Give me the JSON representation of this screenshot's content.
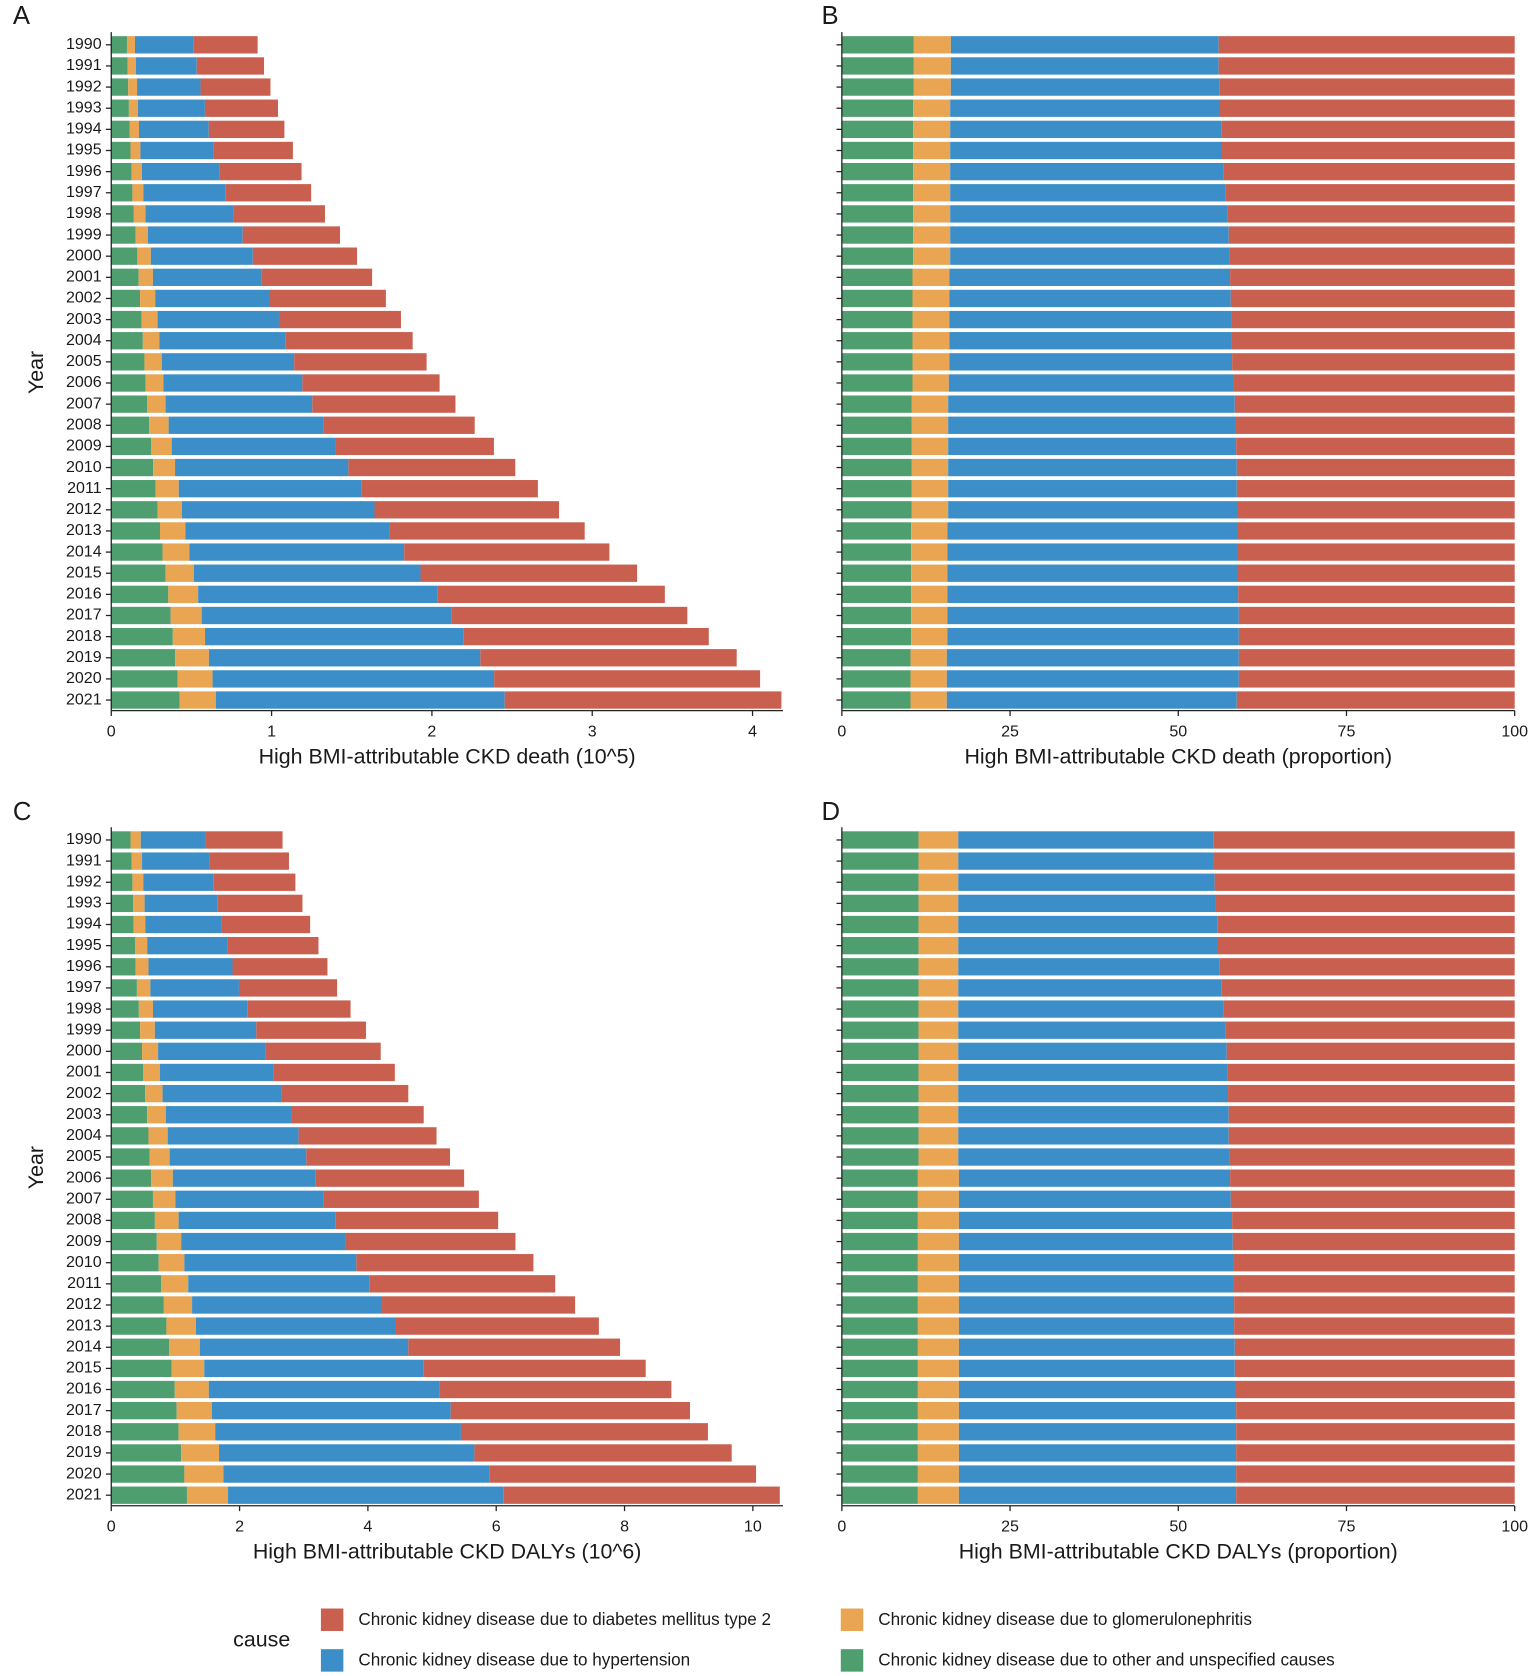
{
  "chart_data": [
    {
      "type": "bar",
      "orientation": "horizontal",
      "stacked": true,
      "panel_label": "A",
      "xlabel": "High BMI-attributable CKD death (10^5)",
      "ylabel": "Year",
      "legend_title": "cause",
      "categories": [
        1990,
        1991,
        1992,
        1993,
        1994,
        1995,
        1996,
        1997,
        1998,
        1999,
        2000,
        2001,
        2002,
        2003,
        2004,
        2005,
        2006,
        2007,
        2008,
        2009,
        2010,
        2011,
        2012,
        2013,
        2014,
        2015,
        2016,
        2017,
        2018,
        2019,
        2020,
        2021
      ],
      "series": [
        {
          "name": "Chronic kidney disease due to diabetes mellitus type 2",
          "color": "#c9604f",
          "values": [
            0.402,
            0.42,
            0.436,
            0.456,
            0.472,
            0.493,
            0.514,
            0.536,
            0.57,
            0.607,
            0.65,
            0.689,
            0.723,
            0.761,
            0.792,
            0.826,
            0.856,
            0.893,
            0.941,
            0.988,
            1.041,
            1.099,
            1.151,
            1.217,
            1.28,
            1.351,
            1.419,
            1.473,
            1.528,
            1.599,
            1.659,
            1.726
          ]
        },
        {
          "name": "Chronic kidney disease due to hypertension",
          "color": "#3b8ec8",
          "values": [
            0.363,
            0.379,
            0.396,
            0.417,
            0.435,
            0.458,
            0.482,
            0.51,
            0.549,
            0.591,
            0.636,
            0.678,
            0.716,
            0.757,
            0.788,
            0.826,
            0.866,
            0.915,
            0.968,
            1.022,
            1.081,
            1.141,
            1.201,
            1.273,
            1.339,
            1.414,
            1.492,
            1.556,
            1.614,
            1.693,
            1.756,
            1.802
          ]
        },
        {
          "name": "Chronic kidney disease due to glomerulonephritis",
          "color": "#e9a552",
          "values": [
            0.05,
            0.052,
            0.055,
            0.057,
            0.059,
            0.062,
            0.065,
            0.069,
            0.073,
            0.078,
            0.084,
            0.089,
            0.094,
            0.099,
            0.103,
            0.108,
            0.111,
            0.116,
            0.122,
            0.129,
            0.136,
            0.144,
            0.151,
            0.159,
            0.168,
            0.177,
            0.186,
            0.194,
            0.201,
            0.211,
            0.219,
            0.226
          ]
        },
        {
          "name": "Chronic kidney disease due to other and unspecified causes",
          "color": "#4f9e70",
          "values": [
            0.098,
            0.102,
            0.106,
            0.11,
            0.114,
            0.12,
            0.126,
            0.132,
            0.141,
            0.151,
            0.163,
            0.171,
            0.18,
            0.19,
            0.197,
            0.207,
            0.215,
            0.223,
            0.236,
            0.248,
            0.262,
            0.277,
            0.29,
            0.304,
            0.32,
            0.338,
            0.356,
            0.37,
            0.384,
            0.398,
            0.413,
            0.426
          ]
        }
      ],
      "xlim": [
        0,
        4.19
      ],
      "xticks": [
        0,
        1,
        2,
        3,
        4
      ]
    },
    {
      "type": "bar",
      "orientation": "horizontal",
      "stacked": true,
      "panel_label": "B",
      "xlabel": "High BMI-attributable CKD death (proportion)",
      "categories": [
        null,
        null,
        null,
        null,
        null,
        null,
        null,
        null,
        null,
        null,
        null,
        null,
        null,
        null,
        null,
        null,
        null,
        null,
        null,
        null,
        null,
        null,
        null,
        null,
        null,
        null,
        null,
        null,
        null,
        null,
        null,
        null
      ],
      "series": [
        {
          "name": "Chronic kidney disease due to diabetes mellitus type 2",
          "color": "#c9604f",
          "values": [
            44.0,
            44.0,
            43.9,
            43.8,
            43.6,
            43.5,
            43.3,
            43.0,
            42.7,
            42.5,
            42.4,
            42.3,
            42.2,
            42.1,
            42.1,
            42.0,
            41.8,
            41.6,
            41.5,
            41.4,
            41.3,
            41.3,
            41.2,
            41.2,
            41.2,
            41.2,
            41.1,
            41.0,
            41.0,
            41.0,
            41.0,
            41.3
          ]
        },
        {
          "name": "Chronic kidney disease due to hypertension",
          "color": "#3b8ec8",
          "values": [
            39.8,
            39.8,
            39.9,
            40.1,
            40.3,
            40.4,
            40.6,
            40.9,
            41.2,
            41.4,
            41.5,
            41.7,
            41.8,
            41.9,
            41.9,
            42.0,
            42.3,
            42.6,
            42.7,
            42.8,
            42.9,
            42.9,
            43.0,
            43.1,
            43.1,
            43.1,
            43.2,
            43.3,
            43.3,
            43.4,
            43.4,
            43.1
          ]
        },
        {
          "name": "Chronic kidney disease due to glomerulonephritis",
          "color": "#e9a552",
          "values": [
            5.5,
            5.5,
            5.5,
            5.5,
            5.5,
            5.5,
            5.5,
            5.5,
            5.5,
            5.5,
            5.5,
            5.5,
            5.5,
            5.5,
            5.5,
            5.5,
            5.4,
            5.4,
            5.4,
            5.4,
            5.4,
            5.4,
            5.4,
            5.4,
            5.4,
            5.4,
            5.4,
            5.4,
            5.4,
            5.4,
            5.4,
            5.4
          ]
        },
        {
          "name": "Chronic kidney disease due to other and unspecified causes",
          "color": "#4f9e70",
          "values": [
            10.7,
            10.7,
            10.7,
            10.6,
            10.6,
            10.6,
            10.6,
            10.6,
            10.6,
            10.6,
            10.6,
            10.5,
            10.5,
            10.5,
            10.5,
            10.5,
            10.5,
            10.4,
            10.4,
            10.4,
            10.4,
            10.4,
            10.4,
            10.3,
            10.3,
            10.3,
            10.3,
            10.3,
            10.3,
            10.2,
            10.2,
            10.2
          ]
        }
      ],
      "xlim": [
        0,
        100
      ],
      "xticks": [
        0,
        25,
        50,
        75,
        100
      ]
    },
    {
      "type": "bar",
      "orientation": "horizontal",
      "stacked": true,
      "panel_label": "C",
      "xlabel": "High BMI-attributable CKD DALYs (10^6)",
      "ylabel": "Year",
      "categories": [
        1990,
        1991,
        1992,
        1993,
        1994,
        1995,
        1996,
        1997,
        1998,
        1999,
        2000,
        2001,
        2002,
        2003,
        2004,
        2005,
        2006,
        2007,
        2008,
        2009,
        2010,
        2011,
        2012,
        2013,
        2014,
        2015,
        2016,
        2017,
        2018,
        2019,
        2020,
        2021
      ],
      "series": [
        {
          "name": "Chronic kidney disease due to diabetes mellitus type 2",
          "color": "#c9604f",
          "values": [
            1.2,
            1.24,
            1.28,
            1.32,
            1.38,
            1.42,
            1.48,
            1.53,
            1.61,
            1.71,
            1.79,
            1.89,
            1.97,
            2.06,
            2.15,
            2.24,
            2.32,
            2.42,
            2.53,
            2.65,
            2.76,
            2.9,
            3.01,
            3.17,
            3.3,
            3.46,
            3.62,
            3.73,
            3.85,
            4.01,
            4.16,
            4.31
          ]
        },
        {
          "name": "Chronic kidney disease due to hypertension",
          "color": "#3b8ec8",
          "values": [
            1.01,
            1.05,
            1.09,
            1.14,
            1.19,
            1.25,
            1.31,
            1.38,
            1.47,
            1.58,
            1.68,
            1.77,
            1.86,
            1.96,
            2.04,
            2.13,
            2.22,
            2.31,
            2.45,
            2.56,
            2.68,
            2.82,
            2.96,
            3.11,
            3.25,
            3.42,
            3.59,
            3.72,
            3.83,
            3.98,
            4.14,
            4.29
          ]
        },
        {
          "name": "Chronic kidney disease due to glomerulonephritis",
          "color": "#e9a552",
          "values": [
            0.16,
            0.16,
            0.17,
            0.18,
            0.18,
            0.19,
            0.2,
            0.21,
            0.22,
            0.23,
            0.25,
            0.26,
            0.27,
            0.29,
            0.3,
            0.31,
            0.34,
            0.35,
            0.37,
            0.38,
            0.4,
            0.42,
            0.44,
            0.46,
            0.48,
            0.51,
            0.53,
            0.55,
            0.57,
            0.59,
            0.61,
            0.64
          ]
        },
        {
          "name": "Chronic kidney disease due to other and unspecified causes",
          "color": "#4f9e70",
          "values": [
            0.3,
            0.32,
            0.33,
            0.34,
            0.35,
            0.37,
            0.38,
            0.4,
            0.43,
            0.45,
            0.48,
            0.5,
            0.53,
            0.56,
            0.58,
            0.6,
            0.62,
            0.65,
            0.68,
            0.71,
            0.74,
            0.78,
            0.82,
            0.86,
            0.9,
            0.94,
            0.99,
            1.02,
            1.05,
            1.09,
            1.14,
            1.18
          ]
        }
      ],
      "xlim": [
        0,
        10.47
      ],
      "xticks": [
        0,
        2,
        4,
        6,
        8,
        10
      ]
    },
    {
      "type": "bar",
      "orientation": "horizontal",
      "stacked": true,
      "panel_label": "D",
      "xlabel": "High BMI-attributable CKD DALYs (proportion)",
      "categories": [
        null,
        null,
        null,
        null,
        null,
        null,
        null,
        null,
        null,
        null,
        null,
        null,
        null,
        null,
        null,
        null,
        null,
        null,
        null,
        null,
        null,
        null,
        null,
        null,
        null,
        null,
        null,
        null,
        null,
        null,
        null,
        null
      ],
      "series": [
        {
          "name": "Chronic kidney disease due to diabetes mellitus type 2",
          "color": "#c9604f",
          "values": [
            44.8,
            44.7,
            44.6,
            44.4,
            44.2,
            44.1,
            43.9,
            43.6,
            43.3,
            43.0,
            42.8,
            42.7,
            42.6,
            42.5,
            42.5,
            42.4,
            42.3,
            42.2,
            42.0,
            41.9,
            41.8,
            41.8,
            41.7,
            41.7,
            41.6,
            41.6,
            41.5,
            41.4,
            41.4,
            41.4,
            41.4,
            41.4
          ]
        },
        {
          "name": "Chronic kidney disease due to hypertension",
          "color": "#3b8ec8",
          "values": [
            37.9,
            38.0,
            38.1,
            38.3,
            38.5,
            38.6,
            38.8,
            39.1,
            39.4,
            39.7,
            39.9,
            40.0,
            40.1,
            40.2,
            40.2,
            40.3,
            40.3,
            40.4,
            40.6,
            40.7,
            40.8,
            40.8,
            40.9,
            40.9,
            41.0,
            41.0,
            41.1,
            41.2,
            41.2,
            41.2,
            41.2,
            41.2
          ]
        },
        {
          "name": "Chronic kidney disease due to glomerulonephritis",
          "color": "#e9a552",
          "values": [
            5.9,
            5.9,
            5.9,
            5.9,
            5.9,
            5.9,
            5.9,
            5.9,
            5.9,
            5.9,
            5.9,
            5.9,
            5.9,
            5.9,
            5.9,
            5.9,
            6.1,
            6.1,
            6.1,
            6.1,
            6.1,
            6.1,
            6.1,
            6.1,
            6.1,
            6.1,
            6.1,
            6.1,
            6.1,
            6.1,
            6.1,
            6.1
          ]
        },
        {
          "name": "Chronic kidney disease due to other and unspecified causes",
          "color": "#4f9e70",
          "values": [
            11.4,
            11.4,
            11.4,
            11.4,
            11.4,
            11.4,
            11.4,
            11.4,
            11.4,
            11.4,
            11.4,
            11.4,
            11.4,
            11.4,
            11.4,
            11.4,
            11.3,
            11.3,
            11.3,
            11.3,
            11.3,
            11.3,
            11.3,
            11.3,
            11.3,
            11.3,
            11.3,
            11.3,
            11.3,
            11.3,
            11.3,
            11.3
          ]
        }
      ],
      "xlim": [
        0,
        100
      ],
      "xticks": [
        0,
        25,
        50,
        75,
        100
      ]
    }
  ]
}
